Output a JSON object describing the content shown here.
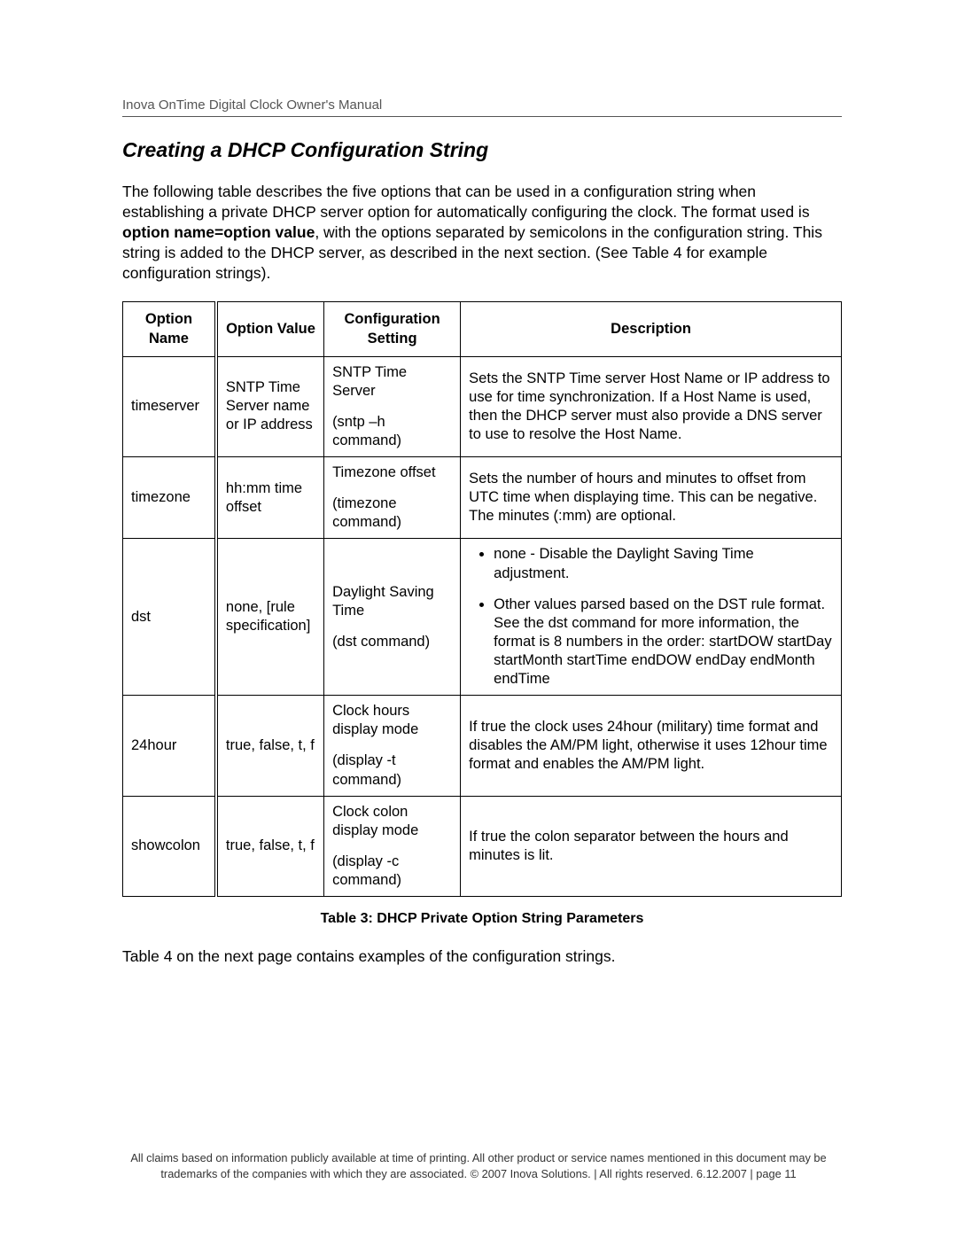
{
  "header": {
    "text": "Inova OnTime Digital Clock Owner's Manual"
  },
  "heading": "Creating a DHCP Configuration String",
  "intro": {
    "p1a": "The following table describes the five options that can be used in a configuration string when establishing a private DHCP server option for automatically configuring the clock. The format used is ",
    "p1b": "option name=option value",
    "p1c": ", with the options separated by semicolons in the configuration string.  This string is added to the DHCP server, as described in the next section.  (See Table 4 for example configuration strings)."
  },
  "table": {
    "headers": {
      "c1": "Option Name",
      "c2": "Option Value",
      "c3": "Configuration Setting",
      "c4": "Description"
    },
    "rows": [
      {
        "name": "timeserver",
        "value": "SNTP Time Server name or IP address",
        "setting_l1": "SNTP Time Server",
        "setting_l2": "(sntp –h command)",
        "desc": "Sets the SNTP Time server Host Name or IP address to use for time synchronization. If a Host Name is used, then the DHCP server must also provide a DNS server to use to resolve the Host Name."
      },
      {
        "name": "timezone",
        "value": "hh:mm time offset",
        "setting_l1": "Timezone offset",
        "setting_l2": "(timezone command)",
        "desc": "Sets the number of hours and minutes to offset from UTC time when displaying time. This can be negative. The minutes (:mm) are optional."
      },
      {
        "name": "dst",
        "value": "none, [rule specification]",
        "setting_l1": "Daylight Saving Time",
        "setting_l2": "(dst command)",
        "desc_list": [
          "none - Disable the Daylight Saving Time adjustment.",
          "Other values parsed based on the DST rule format. See the dst command for more information, the format is 8 numbers in the order: startDOW startDay startMonth startTime endDOW endDay endMonth endTime"
        ]
      },
      {
        "name": "24hour",
        "value": "true, false, t, f",
        "setting_l1": "Clock hours display mode",
        "setting_l2": "(display -t command)",
        "desc": "If true the clock uses 24hour (military) time format and disables the AM/PM light, otherwise it uses 12hour time format and enables the AM/PM light."
      },
      {
        "name": "showcolon",
        "value": "true, false, t, f",
        "setting_l1": "Clock colon display mode",
        "setting_l2": "(display -c command)",
        "desc": "If true the colon separator between the hours and minutes is lit."
      }
    ],
    "caption": "Table 3:  DHCP Private Option String Parameters"
  },
  "after_table": "Table 4 on the next page contains examples of the configuration strings.",
  "footer": {
    "line1": "All claims based on information publicly available at time of printing. All other product or service names mentioned in this document may be",
    "line2": "trademarks of the companies with which they are associated. © 2007 Inova Solutions.  |  All rights reserved. 6.12.2007  |  page 11"
  }
}
